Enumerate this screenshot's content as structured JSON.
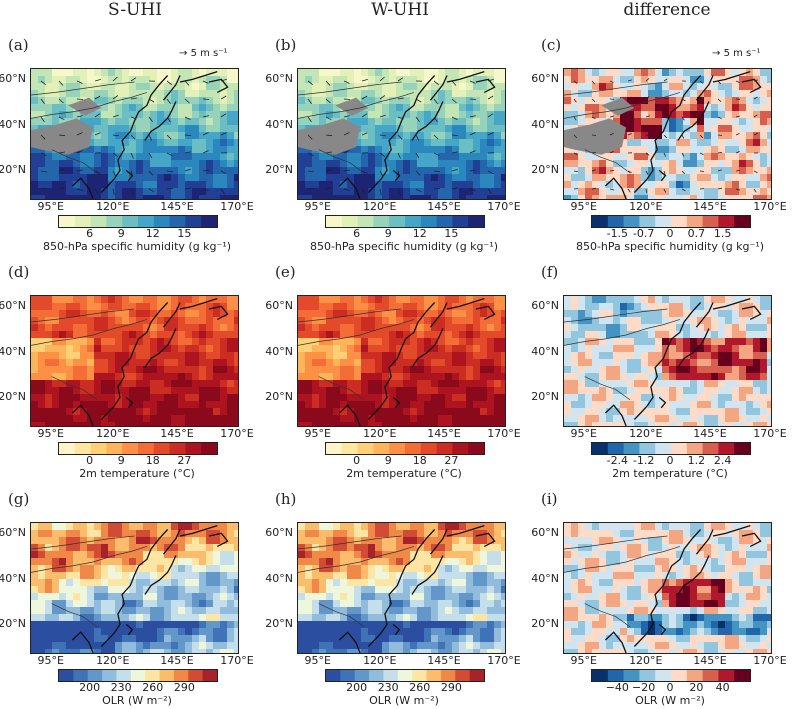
{
  "column_titles": [
    "S-UHI",
    "W-UHI",
    "difference"
  ],
  "lat_labels": [
    "60°N",
    "40°N",
    "20°N"
  ],
  "lon_labels": [
    "95°E",
    "120°E",
    "145°E",
    "170°E"
  ],
  "vector_key": "5 m s⁻¹",
  "rows": [
    {
      "panels": [
        {
          "label": "(a)",
          "kind": "humidity",
          "has_key": true
        },
        {
          "label": "(b)",
          "kind": "humidity",
          "has_key": false
        },
        {
          "label": "(c)",
          "kind": "humdiff",
          "has_key": true
        }
      ],
      "colorbars": [
        {
          "ticks": [
            "6",
            "9",
            "12",
            "15"
          ],
          "label": "850-hPa specific humidity (g kg⁻¹)",
          "colors": [
            "#f7f8c9",
            "#e3f1b8",
            "#c4e6b5",
            "#97d3ba",
            "#6bbfc3",
            "#45a6c7",
            "#2b88be",
            "#2466ac",
            "#223f96",
            "#1c2473"
          ]
        },
        {
          "ticks": [
            "6",
            "9",
            "12",
            "15"
          ],
          "label": "850-hPa specific humidity (g kg⁻¹)",
          "colors": [
            "#f7f8c9",
            "#e3f1b8",
            "#c4e6b5",
            "#97d3ba",
            "#6bbfc3",
            "#45a6c7",
            "#2b88be",
            "#2466ac",
            "#223f96",
            "#1c2473"
          ]
        },
        {
          "ticks": [
            "-1.5",
            "-0.7",
            "0",
            "0.7",
            "1.5"
          ],
          "label": "850-hPa specific humidity (g kg⁻¹)",
          "colors": [
            "#08306b",
            "#2166ac",
            "#4393c3",
            "#92c5de",
            "#d1e5f0",
            "#fddbc7",
            "#f4a582",
            "#d6604d",
            "#b2182b",
            "#67001f"
          ]
        }
      ]
    },
    {
      "panels": [
        {
          "label": "(d)",
          "kind": "temp",
          "has_key": false
        },
        {
          "label": "(e)",
          "kind": "temp",
          "has_key": false
        },
        {
          "label": "(f)",
          "kind": "tempdiff",
          "has_key": false
        }
      ],
      "colorbars": [
        {
          "ticks": [
            "0",
            "9",
            "18",
            "27"
          ],
          "label": "2m temperature (°C)",
          "colors": [
            "#fff5c8",
            "#fee7a0",
            "#fed176",
            "#fdb45b",
            "#fc9145",
            "#f46d36",
            "#e34a2a",
            "#cb2d22",
            "#ad1420",
            "#8a0a1c"
          ]
        },
        {
          "ticks": [
            "0",
            "9",
            "18",
            "27"
          ],
          "label": "2m temperature (°C)",
          "colors": [
            "#fff5c8",
            "#fee7a0",
            "#fed176",
            "#fdb45b",
            "#fc9145",
            "#f46d36",
            "#e34a2a",
            "#cb2d22",
            "#ad1420",
            "#8a0a1c"
          ]
        },
        {
          "ticks": [
            "-2.4",
            "-1.2",
            "0",
            "1.2",
            "2.4"
          ],
          "label": "2m temperature (°C)",
          "colors": [
            "#08306b",
            "#2166ac",
            "#4393c3",
            "#92c5de",
            "#d1e5f0",
            "#fddbc7",
            "#f4a582",
            "#d6604d",
            "#b2182b",
            "#67001f"
          ]
        }
      ]
    },
    {
      "panels": [
        {
          "label": "(g)",
          "kind": "olr",
          "has_key": false
        },
        {
          "label": "(h)",
          "kind": "olr",
          "has_key": false
        },
        {
          "label": "(i)",
          "kind": "olrdiff",
          "has_key": false
        }
      ],
      "colorbars": [
        {
          "ticks": [
            "200",
            "230",
            "260",
            "290"
          ],
          "label": "OLR (W m⁻²)",
          "colors": [
            "#2c4ea0",
            "#3f72b6",
            "#6397c9",
            "#92bcdc",
            "#c4dfe9",
            "#eef6dc",
            "#fde6a4",
            "#fbbd6c",
            "#f08848",
            "#d24b34",
            "#a8222a"
          ]
        },
        {
          "ticks": [
            "200",
            "230",
            "260",
            "290"
          ],
          "label": "OLR (W m⁻²)",
          "colors": [
            "#2c4ea0",
            "#3f72b6",
            "#6397c9",
            "#92bcdc",
            "#c4dfe9",
            "#eef6dc",
            "#fde6a4",
            "#fbbd6c",
            "#f08848",
            "#d24b34",
            "#a8222a"
          ]
        },
        {
          "ticks": [
            "−40",
            "−20",
            "0",
            "20",
            "40"
          ],
          "label": "OLR (W m⁻²)",
          "colors": [
            "#08306b",
            "#2166ac",
            "#4393c3",
            "#92c5de",
            "#d1e5f0",
            "#fddbc7",
            "#f4a582",
            "#d6604d",
            "#b2182b",
            "#67001f"
          ]
        }
      ]
    }
  ]
}
